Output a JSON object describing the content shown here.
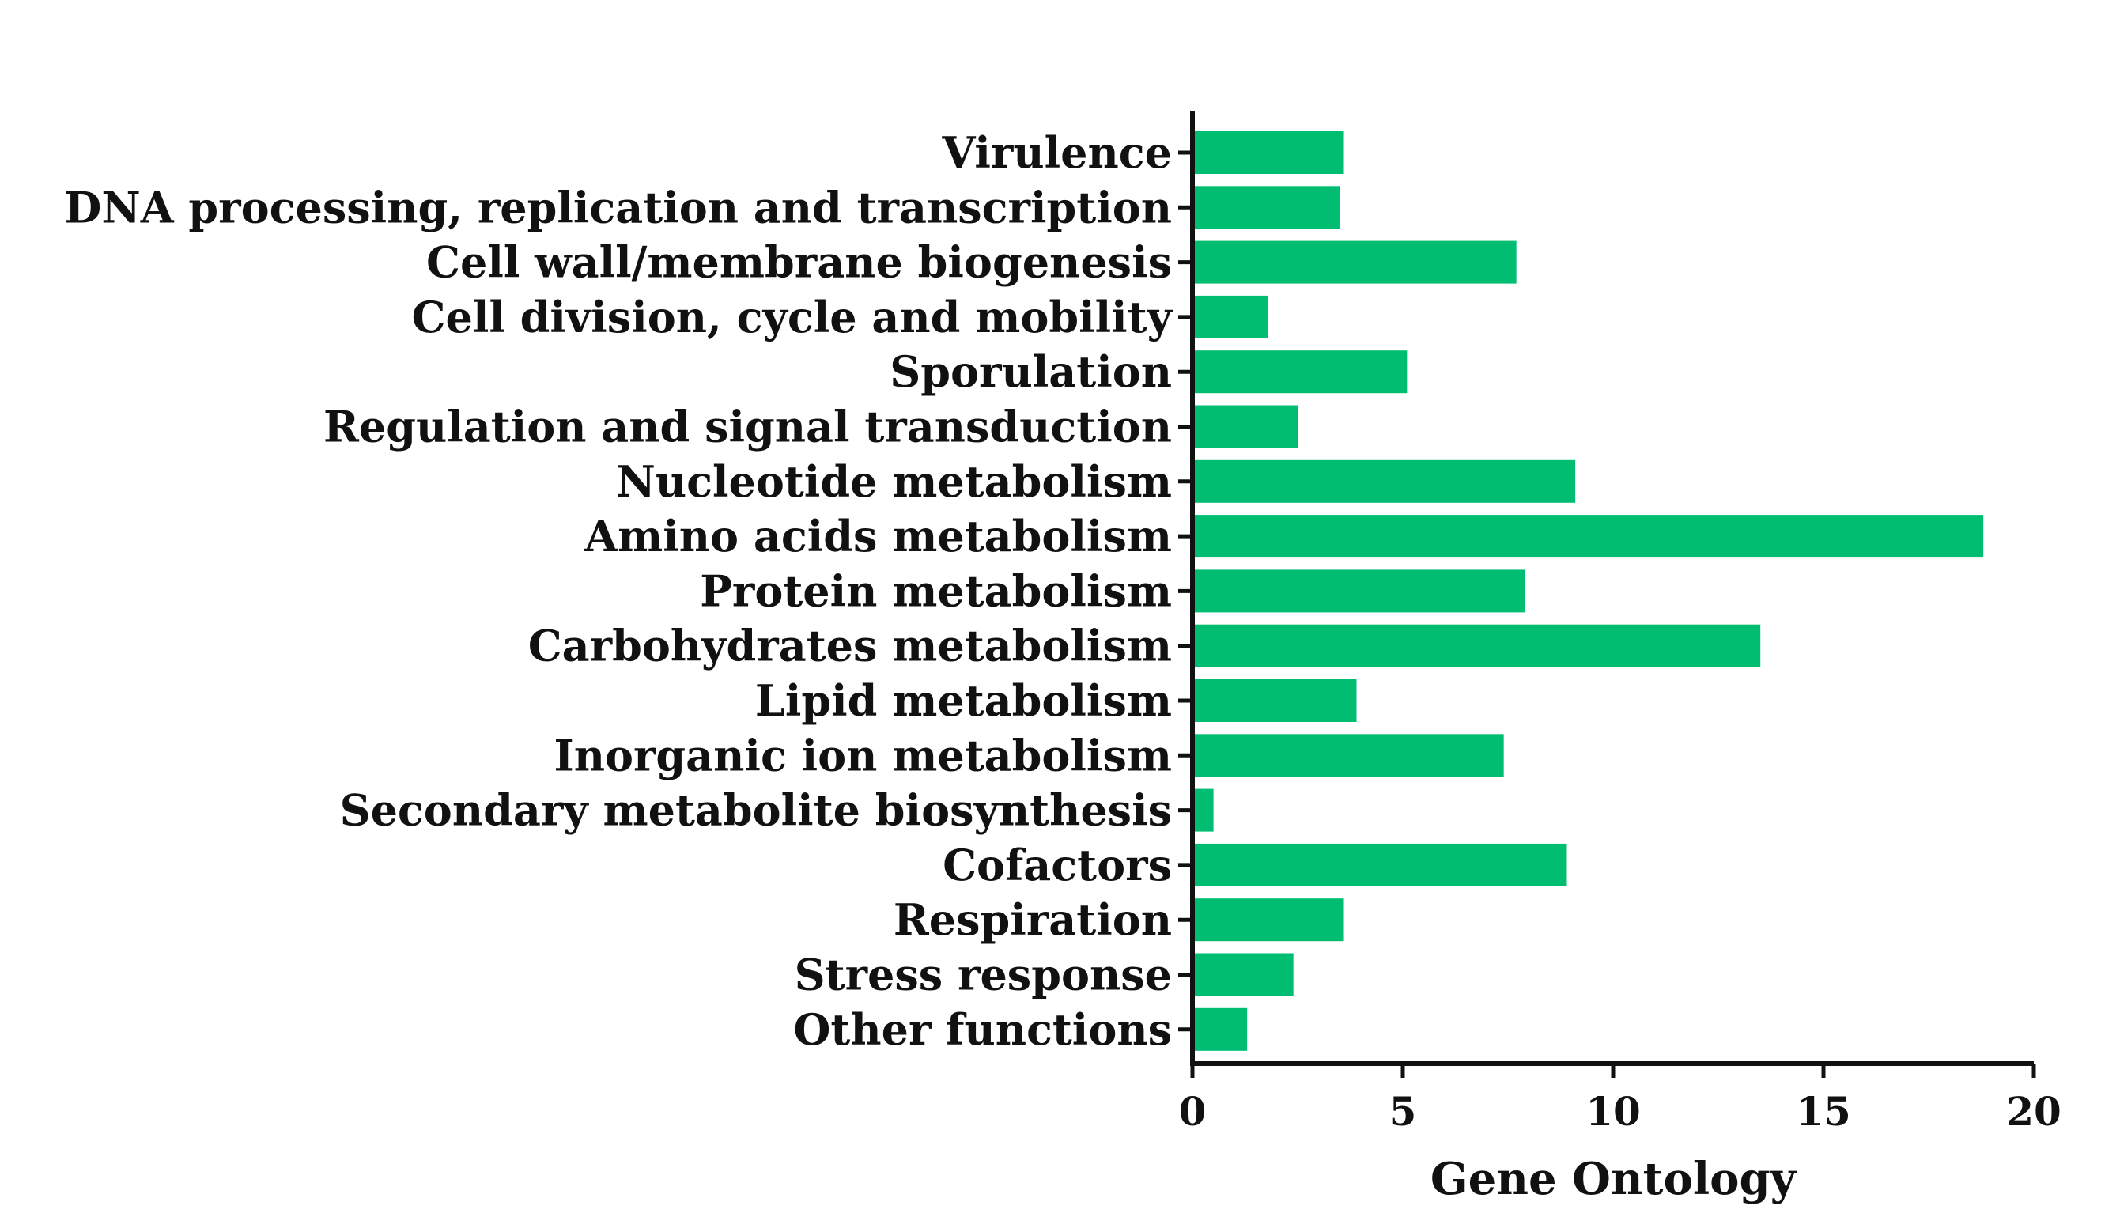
{
  "chart_data": {
    "type": "bar",
    "orientation": "horizontal",
    "title": "",
    "xlabel": "Gene Ontology",
    "ylabel": "",
    "xlim": [
      0,
      20
    ],
    "xticks": [
      "0",
      "5",
      "10",
      "15",
      "20"
    ],
    "grid": false,
    "bar_color": "#00BD71",
    "categories": [
      "Virulence",
      "DNA processing, replication and transcription",
      "Cell wall/membrane biogenesis",
      "Cell division, cycle and mobility",
      "Sporulation",
      "Regulation and signal transduction",
      "Nucleotide metabolism",
      "Amino acids metabolism",
      "Protein metabolism",
      "Carbohydrates metabolism",
      "Lipid metabolism",
      "Inorganic ion metabolism",
      "Secondary metabolite biosynthesis",
      "Cofactors",
      "Respiration",
      "Stress response",
      "Other functions"
    ],
    "values": [
      3.6,
      3.5,
      7.7,
      1.8,
      5.1,
      2.5,
      9.1,
      18.8,
      7.9,
      13.5,
      3.9,
      7.4,
      0.5,
      8.9,
      3.6,
      2.4,
      1.3
    ]
  }
}
